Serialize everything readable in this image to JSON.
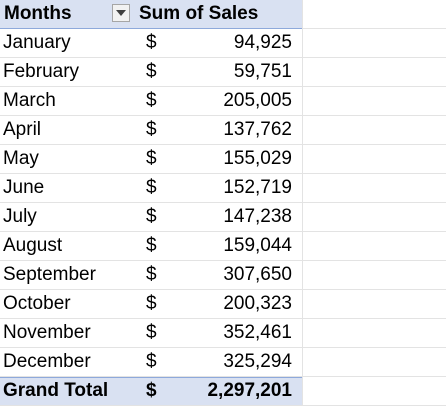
{
  "header": {
    "months_label": "Months",
    "sales_label": "Sum of Sales",
    "filter_icon": "dropdown-arrow"
  },
  "rows": [
    {
      "month": "January",
      "currency": "$",
      "value": "94,925"
    },
    {
      "month": "February",
      "currency": "$",
      "value": "59,751"
    },
    {
      "month": "March",
      "currency": "$",
      "value": "205,005"
    },
    {
      "month": "April",
      "currency": "$",
      "value": "137,762"
    },
    {
      "month": "May",
      "currency": "$",
      "value": "155,029"
    },
    {
      "month": "June",
      "currency": "$",
      "value": "152,719"
    },
    {
      "month": "July",
      "currency": "$",
      "value": "147,238"
    },
    {
      "month": "August",
      "currency": "$",
      "value": "159,044"
    },
    {
      "month": "September",
      "currency": "$",
      "value": "307,650"
    },
    {
      "month": "October",
      "currency": "$",
      "value": "200,323"
    },
    {
      "month": "November",
      "currency": "$",
      "value": "352,461"
    },
    {
      "month": "December",
      "currency": "$",
      "value": "325,294"
    }
  ],
  "total": {
    "label": "Grand Total",
    "currency": "$",
    "value": "2,297,201"
  },
  "colors": {
    "header_fill": "#d9e1f2",
    "accent_line": "#8ea9db",
    "gridline": "#e3e3e3"
  }
}
